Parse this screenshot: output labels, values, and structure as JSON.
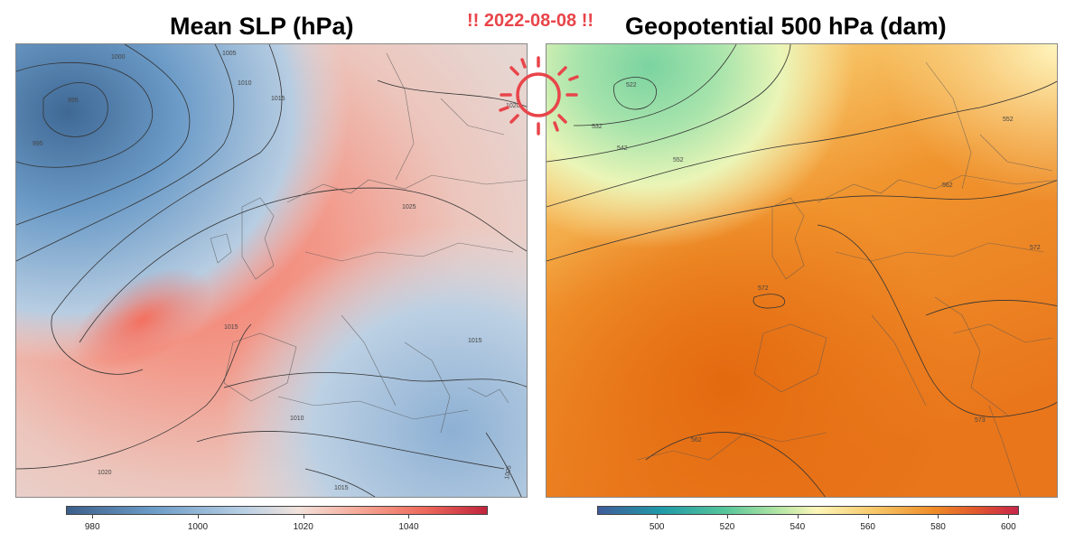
{
  "left_panel": {
    "title": "Mean SLP (hPa)",
    "colorbar_ticks": [
      "980",
      "1000",
      "1020",
      "1040"
    ],
    "colorbar_values": [
      980,
      1000,
      1020,
      1040
    ],
    "colorbar_range": [
      975,
      1055
    ],
    "contour_labels": [
      "1000",
      "995",
      "1005",
      "1010",
      "1015",
      "995",
      "1020",
      "1025",
      "1015",
      "1015",
      "1010",
      "1015",
      "1020",
      "1010",
      "1005"
    ]
  },
  "right_panel": {
    "title": "Geopotential 500 hPa (dam)",
    "colorbar_ticks": [
      "500",
      "520",
      "540",
      "560",
      "580",
      "600"
    ],
    "colorbar_values": [
      500,
      520,
      540,
      560,
      580,
      600
    ],
    "colorbar_range": [
      483,
      603
    ],
    "contour_labels": [
      "522",
      "532",
      "542",
      "552",
      "552",
      "562",
      "572",
      "572",
      "573",
      "562"
    ]
  },
  "annotation": {
    "date_text": "!! 2022-08-08 !!",
    "doodle": "sun-doodle-icon",
    "color": "#e8454a"
  },
  "colors": {
    "slp_low": "#3c5f8a",
    "slp_mid": "#f2e2dc",
    "slp_high": "#c0243c",
    "z500_low": "#3f5c9a",
    "z500_mid": "#fcf6b8",
    "z500_high": "#c8264a"
  }
}
